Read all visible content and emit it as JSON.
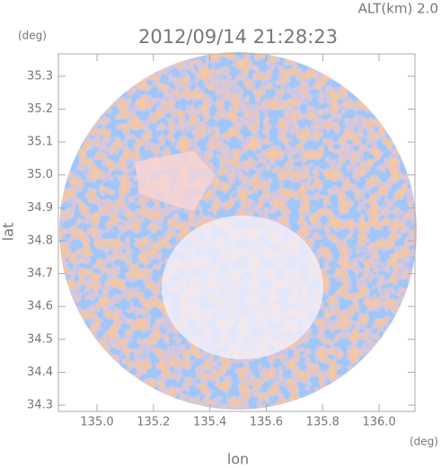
{
  "chart_data": {
    "type": "image",
    "title": "2012/09/14 21:28:23",
    "altitude_label": "ALT(km) 2.0",
    "x_label": "lon",
    "y_label": "lat",
    "x_unit": "(deg)",
    "y_unit": "(deg)",
    "xlim": [
      134.863,
      136.127
    ],
    "ylim": [
      34.281,
      35.368
    ],
    "xticks": [
      {
        "value": 135.0,
        "label": "135.0"
      },
      135.2,
      135.4,
      135.6,
      135.8,
      {
        "value": 136.0,
        "label": "136.0"
      }
    ],
    "yticks": [
      35.3,
      35.2,
      35.1,
      {
        "value": 35.0,
        "label": "35.0"
      },
      34.9,
      34.8,
      34.7,
      34.6,
      34.5,
      34.4,
      34.3
    ]
  }
}
